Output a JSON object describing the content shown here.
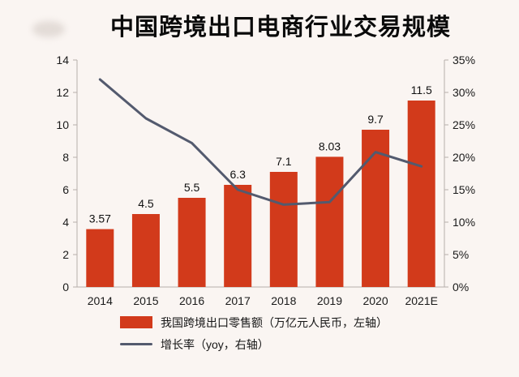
{
  "chart_data": {
    "type": "combo_bar_line",
    "title": "中国跨境出口电商行业交易规模",
    "categories": [
      "2014",
      "2015",
      "2016",
      "2017",
      "2018",
      "2019",
      "2020",
      "2021E"
    ],
    "series": [
      {
        "name": "我国跨境出口零售额（万亿元人民币，左轴）",
        "type": "bar",
        "axis": "left",
        "values": [
          3.57,
          4.5,
          5.5,
          6.3,
          7.1,
          8.03,
          9.7,
          11.5
        ],
        "labels": [
          "3.57",
          "4.5",
          "5.5",
          "6.3",
          "7.1",
          "8.03",
          "9.7",
          "11.5"
        ],
        "color": "#d23a1b"
      },
      {
        "name": "增长率（yoy，右轴）",
        "type": "line",
        "axis": "right",
        "values": [
          32,
          26,
          22.2,
          15,
          12.7,
          13.1,
          20.8,
          18.6
        ],
        "color": "#535a6e"
      }
    ],
    "left_axis": {
      "min": 0,
      "max": 14,
      "step": 2,
      "ticks": [
        "0",
        "2",
        "4",
        "6",
        "8",
        "10",
        "12",
        "14"
      ]
    },
    "right_axis": {
      "min": 0,
      "max": 35,
      "step": 5,
      "ticks": [
        "0%",
        "5%",
        "10%",
        "15%",
        "20%",
        "25%",
        "30%",
        "35%"
      ]
    },
    "grid": "off",
    "legend_position": "bottom-left",
    "axis_line_color": "#b7aeab",
    "tick_label_color": "#1a1a1a"
  }
}
